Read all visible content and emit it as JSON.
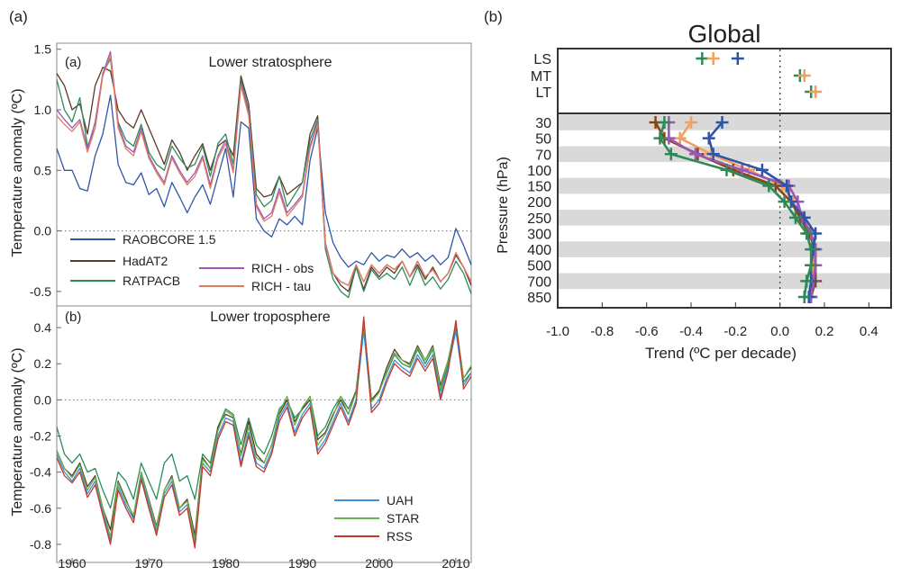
{
  "panel_a": {
    "label": "(a)"
  },
  "panel_b": {
    "label": "(b)"
  },
  "chart_data": [
    {
      "type": "line",
      "panel_label": "(a)",
      "title": "Lower stratosphere",
      "ylabel": "Temperature anomaly (ºC)",
      "xlim": [
        1958,
        2012
      ],
      "ylim": [
        -0.62,
        1.55
      ],
      "yticks": [
        "1.5",
        "1.0",
        "0.5",
        "0.0",
        "-0.5"
      ],
      "ytick_values": [
        1.5,
        1.0,
        0.5,
        0.0,
        -0.5
      ],
      "grid": false,
      "zero_line": true,
      "legend_position": "lower-left",
      "x": [
        1958,
        1959,
        1960,
        1961,
        1962,
        1963,
        1964,
        1965,
        1966,
        1967,
        1968,
        1969,
        1970,
        1971,
        1972,
        1973,
        1974,
        1975,
        1976,
        1977,
        1978,
        1979,
        1980,
        1981,
        1982,
        1983,
        1984,
        1985,
        1986,
        1987,
        1988,
        1989,
        1990,
        1991,
        1992,
        1993,
        1994,
        1995,
        1996,
        1997,
        1998,
        1999,
        2000,
        2001,
        2002,
        2003,
        2004,
        2005,
        2006,
        2007,
        2008,
        2009,
        2010,
        2011,
        2012
      ],
      "series": [
        {
          "name": "RAOBCORE 1.5",
          "color": "#2f56a6",
          "values": [
            0.68,
            0.5,
            0.5,
            0.35,
            0.33,
            0.62,
            0.8,
            1.12,
            0.55,
            0.4,
            0.38,
            0.48,
            0.3,
            0.35,
            0.2,
            0.4,
            0.28,
            0.15,
            0.28,
            0.38,
            0.22,
            0.45,
            0.68,
            0.28,
            0.9,
            0.85,
            0.1,
            0.0,
            -0.05,
            0.1,
            0.05,
            0.12,
            0.05,
            0.58,
            0.85,
            0.15,
            -0.1,
            -0.22,
            -0.3,
            -0.25,
            -0.28,
            -0.18,
            -0.25,
            -0.2,
            -0.22,
            -0.15,
            -0.22,
            -0.18,
            -0.25,
            -0.2,
            -0.28,
            -0.22,
            0.02,
            -0.12,
            -0.28
          ]
        },
        {
          "name": "HadAT2",
          "color": "#5b3a29",
          "values": [
            1.3,
            1.2,
            1.0,
            1.05,
            0.8,
            1.2,
            1.35,
            1.32,
            1.0,
            0.9,
            0.85,
            1.0,
            0.85,
            0.7,
            0.55,
            0.75,
            0.65,
            0.5,
            0.62,
            0.72,
            0.5,
            0.7,
            0.75,
            0.62,
            1.28,
            1.05,
            0.35,
            0.28,
            0.3,
            0.45,
            0.3,
            0.35,
            0.4,
            0.8,
            0.95,
            -0.1,
            -0.35,
            -0.45,
            -0.5,
            -0.3,
            -0.48,
            -0.3,
            -0.38,
            -0.3,
            -0.35,
            -0.25,
            -0.38,
            -0.28,
            -0.4,
            -0.3,
            -0.42,
            -0.35,
            -0.2,
            -0.3,
            -0.45
          ]
        },
        {
          "name": "RATPACB",
          "color": "#2e8b57",
          "values": [
            1.25,
            1.0,
            0.9,
            1.1,
            0.7,
            0.85,
            1.3,
            1.42,
            0.9,
            0.75,
            0.7,
            0.88,
            0.65,
            0.55,
            0.5,
            0.7,
            0.6,
            0.52,
            0.55,
            0.7,
            0.45,
            0.72,
            0.8,
            0.55,
            1.25,
            1.0,
            0.3,
            0.2,
            0.25,
            0.45,
            0.2,
            0.3,
            0.4,
            0.75,
            0.92,
            -0.15,
            -0.4,
            -0.5,
            -0.55,
            -0.3,
            -0.5,
            -0.32,
            -0.4,
            -0.35,
            -0.4,
            -0.3,
            -0.45,
            -0.3,
            -0.45,
            -0.38,
            -0.48,
            -0.4,
            -0.25,
            -0.35,
            -0.52
          ]
        },
        {
          "name": "RICH - obs",
          "color": "#9b59b6",
          "values": [
            1.0,
            0.92,
            0.85,
            0.92,
            0.68,
            0.9,
            1.3,
            1.48,
            0.88,
            0.7,
            0.65,
            0.85,
            0.62,
            0.5,
            0.4,
            0.62,
            0.5,
            0.4,
            0.48,
            0.62,
            0.38,
            0.62,
            0.75,
            0.5,
            1.22,
            0.98,
            0.22,
            0.1,
            0.15,
            0.35,
            0.15,
            0.22,
            0.3,
            0.7,
            0.9,
            -0.1,
            -0.35,
            -0.42,
            -0.45,
            -0.28,
            -0.42,
            -0.28,
            -0.35,
            -0.28,
            -0.32,
            -0.25,
            -0.38,
            -0.25,
            -0.38,
            -0.32,
            -0.42,
            -0.35,
            -0.18,
            -0.3,
            -0.42
          ]
        },
        {
          "name": "RICH - tau",
          "color": "#e07a5f",
          "values": [
            0.95,
            0.88,
            0.82,
            0.9,
            0.65,
            0.85,
            1.28,
            1.45,
            0.85,
            0.68,
            0.62,
            0.82,
            0.6,
            0.48,
            0.38,
            0.6,
            0.48,
            0.38,
            0.45,
            0.6,
            0.35,
            0.6,
            0.72,
            0.48,
            1.2,
            0.95,
            0.2,
            0.08,
            0.12,
            0.32,
            0.12,
            0.2,
            0.28,
            0.68,
            0.88,
            -0.12,
            -0.35,
            -0.42,
            -0.45,
            -0.28,
            -0.42,
            -0.28,
            -0.35,
            -0.28,
            -0.32,
            -0.25,
            -0.38,
            -0.25,
            -0.38,
            -0.32,
            -0.42,
            -0.35,
            -0.18,
            -0.3,
            -0.42
          ]
        }
      ]
    },
    {
      "type": "line",
      "panel_label": "(b)",
      "title": "Lower troposphere",
      "ylabel": "Temperature anomaly (ºC)",
      "xlim": [
        1958,
        2012
      ],
      "ylim": [
        -0.9,
        0.52
      ],
      "xticks": [
        "1960",
        "1970",
        "1980",
        "1990",
        "2000",
        "2010"
      ],
      "xtick_values": [
        1960,
        1970,
        1980,
        1990,
        2000,
        2010
      ],
      "yticks": [
        "0.4",
        "0.2",
        "0.0",
        "-0.2",
        "-0.4",
        "-0.6",
        "-0.8"
      ],
      "ytick_values": [
        0.4,
        0.2,
        0.0,
        -0.2,
        -0.4,
        -0.6,
        -0.8
      ],
      "grid": false,
      "zero_line": true,
      "legend_position": "lower-right",
      "x": [
        1958,
        1959,
        1960,
        1961,
        1962,
        1963,
        1964,
        1965,
        1966,
        1967,
        1968,
        1969,
        1970,
        1971,
        1972,
        1973,
        1974,
        1975,
        1976,
        1977,
        1978,
        1979,
        1980,
        1981,
        1982,
        1983,
        1984,
        1985,
        1986,
        1987,
        1988,
        1989,
        1990,
        1991,
        1992,
        1993,
        1994,
        1995,
        1996,
        1997,
        1998,
        1999,
        2000,
        2001,
        2002,
        2003,
        2004,
        2005,
        2006,
        2007,
        2008,
        2009,
        2010,
        2011,
        2012
      ],
      "hidden_series": [
        {
          "color": "#2e8b57",
          "values": [
            -0.15,
            -0.3,
            -0.35,
            -0.3,
            -0.4,
            -0.38,
            -0.5,
            -0.6,
            -0.4,
            -0.45,
            -0.55,
            -0.35,
            -0.45,
            -0.55,
            -0.35,
            -0.3,
            -0.45,
            -0.42,
            -0.55,
            -0.3,
            -0.35,
            -0.15,
            -0.05,
            -0.08,
            -0.25,
            -0.1,
            -0.25,
            -0.3,
            -0.2,
            -0.05,
            0.0,
            -0.1,
            -0.05,
            0.02,
            -0.2,
            -0.15,
            -0.05,
            0.02,
            -0.05,
            0.05,
            0.4,
            0.0,
            0.05,
            0.15,
            0.25,
            0.2,
            0.18,
            0.28,
            0.2,
            0.28,
            0.05,
            0.2,
            0.4,
            0.1,
            0.15
          ]
        },
        {
          "color": "#5b3a29",
          "values": [
            -0.28,
            -0.38,
            -0.42,
            -0.35,
            -0.48,
            -0.42,
            -0.6,
            -0.72,
            -0.45,
            -0.55,
            -0.65,
            -0.4,
            -0.55,
            -0.7,
            -0.5,
            -0.42,
            -0.6,
            -0.55,
            -0.75,
            -0.32,
            -0.38,
            -0.15,
            -0.08,
            -0.1,
            -0.3,
            -0.12,
            -0.3,
            -0.35,
            -0.25,
            -0.08,
            0.0,
            -0.12,
            -0.05,
            0.0,
            -0.22,
            -0.18,
            -0.08,
            0.0,
            -0.08,
            0.05,
            0.42,
            0.0,
            0.05,
            0.18,
            0.28,
            0.22,
            0.2,
            0.3,
            0.22,
            0.3,
            0.08,
            0.22,
            0.42,
            0.12,
            0.18
          ]
        }
      ],
      "series": [
        {
          "name": "UAH",
          "color": "#3a8fd8",
          "values": [
            -0.3,
            -0.4,
            -0.45,
            -0.38,
            -0.52,
            -0.45,
            -0.62,
            -0.78,
            -0.48,
            -0.58,
            -0.66,
            -0.42,
            -0.58,
            -0.73,
            -0.52,
            -0.45,
            -0.62,
            -0.58,
            -0.8,
            -0.35,
            -0.4,
            -0.2,
            -0.1,
            -0.12,
            -0.35,
            -0.18,
            -0.35,
            -0.38,
            -0.28,
            -0.1,
            -0.02,
            -0.18,
            -0.08,
            -0.02,
            -0.28,
            -0.22,
            -0.12,
            -0.02,
            -0.12,
            0.0,
            0.38,
            -0.05,
            0.0,
            0.12,
            0.22,
            0.18,
            0.15,
            0.25,
            0.18,
            0.25,
            0.02,
            0.18,
            0.38,
            0.08,
            0.15
          ]
        },
        {
          "name": "STAR",
          "color": "#6ab04c",
          "values": [
            -0.28,
            -0.38,
            -0.43,
            -0.36,
            -0.5,
            -0.43,
            -0.6,
            -0.76,
            -0.46,
            -0.56,
            -0.64,
            -0.4,
            -0.56,
            -0.71,
            -0.5,
            -0.43,
            -0.6,
            -0.56,
            -0.78,
            -0.33,
            -0.38,
            -0.17,
            -0.06,
            -0.09,
            -0.31,
            -0.15,
            -0.32,
            -0.35,
            -0.25,
            -0.07,
            0.02,
            -0.14,
            -0.04,
            0.02,
            -0.25,
            -0.19,
            -0.09,
            0.02,
            -0.08,
            0.04,
            0.43,
            -0.01,
            0.04,
            0.16,
            0.26,
            0.22,
            0.19,
            0.29,
            0.22,
            0.29,
            0.06,
            0.22,
            0.42,
            0.12,
            0.19
          ]
        },
        {
          "name": "RSS",
          "color": "#c0392b",
          "values": [
            -0.32,
            -0.42,
            -0.46,
            -0.4,
            -0.54,
            -0.47,
            -0.64,
            -0.8,
            -0.5,
            -0.6,
            -0.68,
            -0.44,
            -0.6,
            -0.75,
            -0.54,
            -0.47,
            -0.64,
            -0.6,
            -0.82,
            -0.37,
            -0.42,
            -0.22,
            -0.12,
            -0.14,
            -0.37,
            -0.2,
            -0.37,
            -0.4,
            -0.3,
            -0.12,
            -0.04,
            -0.2,
            -0.1,
            -0.04,
            -0.3,
            -0.24,
            -0.14,
            -0.04,
            -0.14,
            -0.02,
            0.46,
            -0.07,
            -0.02,
            0.1,
            0.2,
            0.16,
            0.13,
            0.23,
            0.16,
            0.23,
            0.0,
            0.16,
            0.44,
            0.06,
            0.13
          ]
        }
      ]
    },
    {
      "type": "line",
      "panel_label": "(b)",
      "title": "Global",
      "xlabel": "Trend (ºC per decade)",
      "ylabel": "Pressure (hPa)",
      "xlim": [
        -1.0,
        0.5
      ],
      "xticks": [
        "-1.0",
        "-0.8",
        "-0.6",
        "-0.4",
        "-0.2",
        "0.0",
        "0.2",
        "0.4"
      ],
      "xtick_values": [
        -1.0,
        -0.8,
        -0.6,
        -0.4,
        -0.2,
        0.0,
        0.2,
        0.4
      ],
      "layer_labels": [
        "LS",
        "MT",
        "LT"
      ],
      "levels": [
        "30",
        "50",
        "70",
        "100",
        "150",
        "200",
        "250",
        "300",
        "400",
        "500",
        "700",
        "850"
      ],
      "shaded_bands": "alternating",
      "zero_line": true,
      "layers": [
        {
          "color": "#2e8b57",
          "values": [
            -0.35,
            0.09,
            0.14
          ]
        },
        {
          "color": "#f0a060",
          "values": [
            -0.3,
            0.11,
            0.16
          ]
        },
        {
          "color": "#2f56a6",
          "values": [
            -0.19,
            null,
            null
          ]
        }
      ],
      "series": [
        {
          "color": "#f0a060",
          "values": [
            -0.4,
            -0.45,
            -0.31,
            -0.14,
            0.01,
            0.06,
            0.09,
            0.13,
            0.16,
            0.15,
            0.15,
            0.14
          ]
        },
        {
          "color": "#8b4513",
          "values": [
            -0.56,
            -0.52,
            -0.37,
            -0.21,
            -0.02,
            0.05,
            0.09,
            0.13,
            0.16,
            0.16,
            0.16,
            0.14
          ]
        },
        {
          "color": "#9b59b6",
          "values": [
            -0.5,
            -0.5,
            -0.38,
            -0.17,
            0.04,
            0.08,
            0.1,
            0.14,
            0.16,
            0.16,
            0.15,
            0.14
          ]
        },
        {
          "color": "#2f56a6",
          "values": [
            -0.26,
            -0.32,
            -0.3,
            -0.08,
            0.03,
            0.05,
            0.11,
            0.16,
            0.15,
            0.14,
            0.14,
            0.13
          ]
        },
        {
          "color": "#2e8b57",
          "values": [
            -0.52,
            -0.54,
            -0.49,
            -0.24,
            -0.05,
            0.02,
            0.07,
            0.12,
            0.14,
            0.14,
            0.12,
            0.11
          ]
        }
      ]
    }
  ]
}
